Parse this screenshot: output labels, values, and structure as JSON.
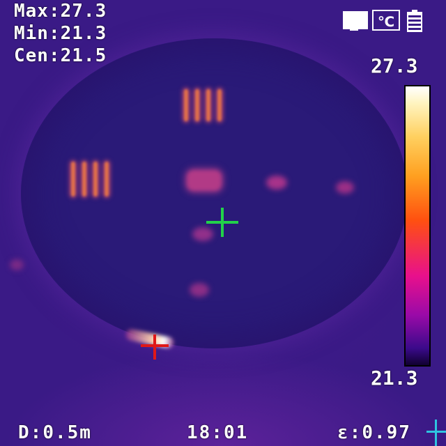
{
  "readouts": {
    "max_label": "Max:",
    "max_value": "27.3",
    "min_label": "Min:",
    "min_value": "21.3",
    "cen_label": "Cen:",
    "cen_value": "21.5"
  },
  "scale": {
    "top": "27.3",
    "bottom": "21.3"
  },
  "status_icons": {
    "display": "monitor-icon",
    "units": "℃",
    "battery": "battery-icon"
  },
  "footer": {
    "distance_label": "D:",
    "distance_value": "0.5m",
    "time": "18:01",
    "emissivity_label": "ε:",
    "emissivity_value": "0.97"
  },
  "colors": {
    "center_crosshair": "#22d24a",
    "max_crosshair": "#e01818",
    "corner_marker": "#2ec4e0"
  }
}
